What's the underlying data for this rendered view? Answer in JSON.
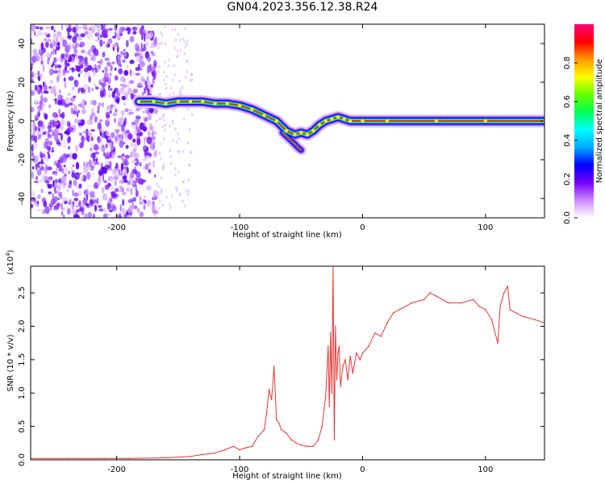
{
  "title": "GN04.2023.356.12.38.R24",
  "chart_data": [
    {
      "type": "heatmap",
      "xlabel": "Height of straight line (km)",
      "ylabel": "Frequency (Hz)",
      "xlim": [
        -270,
        148
      ],
      "ylim": [
        -50,
        50
      ],
      "xticks": [
        -200,
        -100,
        0,
        100
      ],
      "yticks": [
        -40,
        -20,
        0,
        20,
        40
      ],
      "xtick_labels": [
        "-200",
        "-100",
        "0",
        "100"
      ],
      "ytick_labels": [
        "-40",
        "-20",
        "0",
        "20",
        "40"
      ],
      "colorbar": {
        "label": "Normalized spectral amplitude",
        "range": [
          0,
          1
        ],
        "ticks": [
          0.0,
          0.2,
          0.4,
          0.6,
          0.8
        ],
        "tick_labels": [
          "0.0",
          "0.2",
          "0.4",
          "0.6",
          "0.8"
        ],
        "colors": [
          "#ffffff",
          "#cc88ff",
          "#7700ff",
          "#0000ff",
          "#00aaff",
          "#00ffff",
          "#00ff55",
          "#66ff00",
          "#ffff00",
          "#ff9900",
          "#ff0000",
          "#ff0077"
        ]
      },
      "noise_region_x": [
        -270,
        -168
      ],
      "ridge": {
        "x": [
          -182,
          -170,
          -160,
          -150,
          -140,
          -130,
          -120,
          -110,
          -100,
          -90,
          -80,
          -70,
          -62,
          -55,
          -50,
          -45,
          -40,
          -35,
          -30,
          -25,
          -20,
          -15,
          -10,
          0,
          20,
          60,
          100,
          148
        ],
        "frequency": [
          10,
          10,
          9,
          10,
          10,
          10,
          9,
          9,
          8,
          6,
          3,
          0,
          -5,
          -7,
          -6,
          -7,
          -5,
          -2,
          0,
          1,
          2,
          1,
          0,
          0,
          0,
          0,
          0,
          0
        ]
      },
      "branch": {
        "x": [
          -65,
          -60,
          -55,
          -52,
          -50
        ],
        "frequency": [
          -6,
          -9,
          -12,
          -14,
          -15
        ]
      }
    },
    {
      "type": "line",
      "xlabel": "Height of straight line (km)",
      "ylabel": "SNR (10 * v/v)",
      "yscale_note": "(x10",
      "yscale_exp": "4",
      "xlim": [
        -270,
        148
      ],
      "ylim": [
        0,
        2.9
      ],
      "xticks": [
        -200,
        -100,
        0,
        100
      ],
      "yticks": [
        0.0,
        0.5,
        1.0,
        1.5,
        2.0,
        2.5
      ],
      "xtick_labels": [
        "-200",
        "-100",
        "0",
        "100"
      ],
      "ytick_labels": [
        "0.0",
        "0.5",
        "1.0",
        "1.5",
        "2.0",
        "2.5"
      ],
      "color": "#ee3333",
      "series": [
        {
          "x": [
            -270,
            -240,
            -210,
            -190,
            -160,
            -140,
            -130,
            -120,
            -112,
            -105,
            -100,
            -95,
            -90,
            -85,
            -80,
            -78,
            -76,
            -74,
            -72,
            -70,
            -68,
            -66,
            -62,
            -58,
            -54,
            -50,
            -45,
            -40,
            -36,
            -33,
            -30,
            -28,
            -27,
            -26,
            -25,
            -24,
            -23,
            -22,
            -21,
            -20,
            -19,
            -18,
            -16,
            -14,
            -12,
            -10,
            -8,
            -5,
            -2,
            0,
            5,
            10,
            15,
            20,
            25,
            30,
            40,
            50,
            55,
            60,
            70,
            80,
            90,
            95,
            100,
            105,
            110,
            112,
            115,
            118,
            120,
            125,
            130,
            140,
            148
          ],
          "y": [
            0.02,
            0.02,
            0.02,
            0.02,
            0.03,
            0.05,
            0.08,
            0.1,
            0.15,
            0.2,
            0.15,
            0.18,
            0.2,
            0.35,
            0.45,
            0.7,
            1.05,
            0.9,
            1.4,
            0.6,
            0.55,
            0.45,
            0.4,
            0.3,
            0.25,
            0.22,
            0.2,
            0.2,
            0.3,
            0.5,
            0.95,
            1.7,
            0.8,
            1.9,
            1.0,
            2.9,
            0.3,
            2.0,
            1.2,
            1.6,
            1.7,
            1.1,
            1.4,
            1.5,
            1.2,
            1.55,
            1.3,
            1.6,
            1.5,
            1.6,
            1.7,
            1.9,
            1.85,
            2.05,
            2.2,
            2.25,
            2.35,
            2.4,
            2.5,
            2.45,
            2.35,
            2.35,
            2.4,
            2.3,
            2.25,
            2.1,
            1.75,
            2.3,
            2.5,
            2.6,
            2.25,
            2.2,
            2.15,
            2.1,
            2.05
          ]
        }
      ]
    }
  ]
}
